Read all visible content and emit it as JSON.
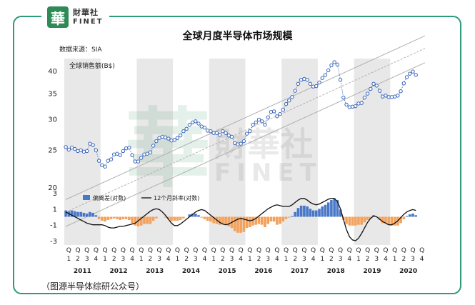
{
  "brand": {
    "mark": "華",
    "cn": "財華社",
    "en": "FINET"
  },
  "title": "全球月度半导体市场规模",
  "source": "数据来源：SIA",
  "caption": "（图源半导体综研公众号）",
  "chart_data": [
    {
      "type": "line",
      "name": "top",
      "ylabel": "全球销售额(B$)",
      "scale": "log",
      "ylim": [
        20,
        43
      ],
      "yticks": [
        20,
        25,
        30,
        35,
        40
      ],
      "grid": "alternating vertical year bands",
      "x_unit": "months from Jan 2011 to Dec 2020",
      "sales": [
        25.4,
        25.0,
        25.3,
        25.1,
        24.8,
        24.9,
        24.7,
        24.8,
        25.9,
        25.7,
        24.9,
        23.4,
        22.8,
        22.6,
        23.4,
        23.6,
        24.3,
        24.4,
        24.2,
        24.8,
        25.2,
        25.3,
        24.2,
        23.3,
        23.3,
        23.8,
        24.3,
        24.4,
        24.6,
        25.6,
        26.3,
        26.8,
        27.0,
        26.9,
        26.7,
        26.4,
        26.5,
        26.8,
        27.2,
        27.9,
        28.3,
        29.0,
        29.4,
        29.6,
        29.2,
        28.7,
        28.5,
        28.0,
        27.9,
        27.6,
        27.6,
        27.3,
        27.9,
        27.6,
        27.2,
        27.0,
        26.0,
        25.8,
        25.9,
        26.3,
        27.5,
        27.9,
        29.0,
        29.4,
        29.9,
        29.6,
        29.0,
        30.3,
        31.3,
        31.4,
        30.5,
        30.9,
        31.7,
        32.8,
        33.5,
        34.2,
        35.5,
        37.0,
        37.9,
        38.1,
        37.9,
        37.0,
        36.4,
        36.5,
        37.3,
        38.3,
        39.0,
        40.1,
        41.3,
        42.1,
        41.5,
        37.9,
        34.1,
        32.7,
        32.2,
        32.3,
        32.4,
        32.9,
        33.0,
        34.1,
        34.9,
        35.9,
        37.0,
        36.6,
        35.5,
        34.3,
        34.5,
        34.2,
        34.2,
        34.3,
        34.5,
        35.4,
        37.1,
        38.5,
        39.3,
        39.8,
        39.0
      ]
    },
    {
      "type": "bar",
      "name": "bottom",
      "ylim": [
        -3,
        3
      ],
      "yticks": [
        3,
        1,
        -1,
        -3
      ],
      "series": [
        {
          "name": "偏离差(对数)",
          "color_pos": "#4a78c8",
          "color_neg": "#f4a15c",
          "values": [
            0.8,
            0.7,
            0.8,
            0.7,
            0.6,
            0.6,
            0.5,
            0.4,
            0.6,
            0.5,
            0.2,
            -0.3,
            -0.5,
            -0.6,
            -0.4,
            -0.3,
            -0.2,
            -0.3,
            -0.4,
            -0.3,
            -0.3,
            -0.4,
            -0.8,
            -1.1,
            -1.2,
            -1.1,
            -0.9,
            -0.9,
            -0.9,
            -0.5,
            -0.2,
            0.0,
            0.0,
            -0.1,
            -0.3,
            -0.5,
            -0.5,
            -0.5,
            -0.4,
            -0.2,
            0.0,
            0.3,
            0.4,
            0.4,
            0.2,
            -0.1,
            -0.3,
            -0.5,
            -0.6,
            -0.8,
            -0.9,
            -1.0,
            -0.9,
            -1.0,
            -1.2,
            -1.4,
            -1.8,
            -2.0,
            -2.0,
            -1.9,
            -1.4,
            -1.3,
            -1.1,
            -1.0,
            -0.9,
            -1.0,
            -1.3,
            -0.9,
            -0.6,
            -0.6,
            -1.0,
            -0.9,
            -0.6,
            -0.3,
            -0.1,
            0.1,
            0.6,
            1.1,
            1.4,
            1.4,
            1.3,
            1.0,
            0.8,
            0.8,
            1.0,
            1.3,
            1.5,
            1.8,
            2.1,
            2.3,
            2.1,
            0.9,
            -0.4,
            -0.9,
            -1.1,
            -1.1,
            -1.1,
            -1.0,
            -1.0,
            -0.7,
            -0.4,
            -0.2,
            0.2,
            0.0,
            -0.4,
            -0.8,
            -0.8,
            -1.0,
            -1.1,
            -1.1,
            -1.1,
            -0.8,
            -0.3,
            0.1,
            0.3,
            0.4,
            0.2
          ]
        },
        {
          "name": "12个月斜率(对数)",
          "color": "#111111",
          "values": [
            0.6,
            0.4,
            0.2,
            0.0,
            -0.2,
            -0.4,
            -0.6,
            -0.8,
            -0.9,
            -1.0,
            -1.0,
            -1.0,
            -1.0,
            -1.1,
            -1.3,
            -1.4,
            -1.4,
            -1.3,
            -1.2,
            -1.2,
            -1.1,
            -1.0,
            -0.9,
            -0.8,
            -0.5,
            -0.2,
            0.1,
            0.4,
            0.7,
            0.9,
            1.0,
            0.9,
            0.6,
            0.2,
            -0.3,
            -0.8,
            -1.1,
            -1.1,
            -0.9,
            -0.6,
            -0.3,
            0.0,
            0.3,
            0.6,
            0.8,
            0.9,
            0.8,
            0.5,
            0.2,
            -0.1,
            -0.4,
            -0.7,
            -0.9,
            -1.0,
            -0.9,
            -0.7,
            -0.5,
            -0.3,
            -0.2,
            -0.3,
            -0.4,
            -0.5,
            -0.4,
            -0.2,
            0.1,
            0.4,
            0.7,
            1.0,
            1.2,
            1.4,
            1.5,
            1.4,
            1.3,
            1.3,
            1.3,
            1.5,
            1.8,
            2.1,
            2.3,
            2.3,
            2.1,
            1.8,
            1.6,
            1.5,
            1.6,
            1.8,
            2.0,
            2.2,
            2.3,
            2.3,
            1.9,
            1.0,
            -0.3,
            -1.6,
            -2.5,
            -2.9,
            -3.0,
            -2.7,
            -2.1,
            -1.4,
            -0.7,
            -0.2,
            0.1,
            0.0,
            -0.3,
            -0.6,
            -0.8,
            -1.0,
            -1.0,
            -0.8,
            -0.5,
            -0.1,
            0.3,
            0.6,
            0.8,
            0.9,
            0.8
          ]
        }
      ]
    }
  ],
  "axis": {
    "quarters": [
      "1",
      "2",
      "3",
      "4"
    ],
    "q_prefix": "Q",
    "years": [
      "2011",
      "2012",
      "2013",
      "2014",
      "2015",
      "2016",
      "2017",
      "2018",
      "2019",
      "2020"
    ]
  },
  "colors": {
    "band": "#e8e8e8",
    "sales_marker": "#3a66b8",
    "trend": "#b0b0b0",
    "frame": "#2e9b7a"
  }
}
